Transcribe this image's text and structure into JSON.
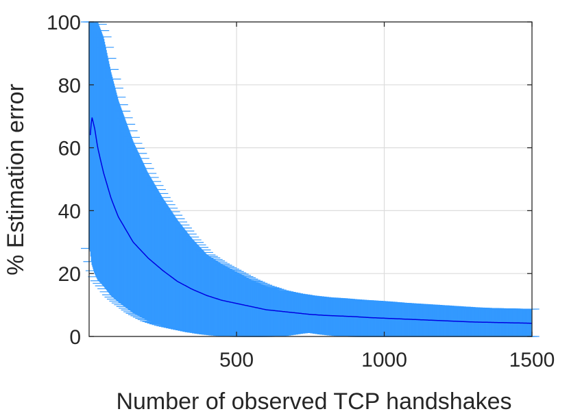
{
  "chart_data": {
    "type": "line",
    "title": "",
    "xlabel": "Number of observed TCP handshakes",
    "ylabel": "% Estimation error",
    "xlim": [
      1,
      1500
    ],
    "ylim": [
      0,
      100
    ],
    "grid": true,
    "legend": "none",
    "x_ticks": [
      500,
      1000,
      1500
    ],
    "x_tick_labels": [
      "500",
      "1000",
      "1500"
    ],
    "y_ticks": [
      0,
      20,
      40,
      60,
      80,
      100
    ],
    "y_tick_labels": [
      "0",
      "20",
      "40",
      "60",
      "80",
      "100"
    ],
    "colors": {
      "mean": "#0000e0",
      "band": "#3399ff",
      "grid": "#dcdcdc",
      "axis": "#262626"
    },
    "series": [
      {
        "style": "mean-line",
        "x": [
          5,
          10,
          20,
          30,
          50,
          75,
          100,
          150,
          200,
          250,
          300,
          350,
          400,
          450,
          500,
          550,
          600,
          650,
          700,
          750,
          800,
          850,
          900,
          950,
          1000,
          1050,
          1100,
          1150,
          1200,
          1250,
          1300,
          1350,
          1400,
          1450,
          1500
        ],
        "y": [
          64,
          70,
          66,
          60,
          52,
          44,
          38,
          30,
          25,
          21,
          17.5,
          15,
          13,
          11.5,
          10.5,
          9.5,
          8.5,
          8,
          7.5,
          7,
          6.7,
          6.5,
          6.3,
          6,
          5.8,
          5.6,
          5.4,
          5.2,
          5,
          4.8,
          4.6,
          4.5,
          4.4,
          4.3,
          4.2
        ]
      },
      {
        "style": "error-band",
        "x": [
          1,
          5,
          10,
          20,
          30,
          50,
          75,
          100,
          150,
          200,
          250,
          300,
          350,
          400,
          450,
          500,
          550,
          600,
          650,
          700,
          750,
          800,
          850,
          900,
          950,
          1000,
          1050,
          1100,
          1150,
          1200,
          1250,
          1300,
          1350,
          1400,
          1450,
          1500
        ],
        "upper": [
          100,
          100,
          100,
          100,
          100,
          95,
          84,
          75,
          62,
          52,
          44,
          37,
          31,
          26,
          23,
          20.5,
          18,
          16,
          14.5,
          13.5,
          12.8,
          12.3,
          12,
          11.6,
          11.3,
          11,
          10.6,
          10.3,
          10,
          9.7,
          9.4,
          9.1,
          8.9,
          8.8,
          8.7,
          8.7
        ],
        "lower": [
          28,
          27,
          23,
          20,
          18,
          16,
          13,
          11,
          7.5,
          5,
          3.5,
          2.5,
          1.5,
          0.8,
          0.3,
          0,
          0,
          0,
          0.3,
          1,
          1.5,
          0.8,
          0.3,
          0,
          0,
          0,
          0,
          0,
          0,
          0,
          0,
          0,
          0,
          0,
          0,
          0
        ]
      }
    ]
  }
}
